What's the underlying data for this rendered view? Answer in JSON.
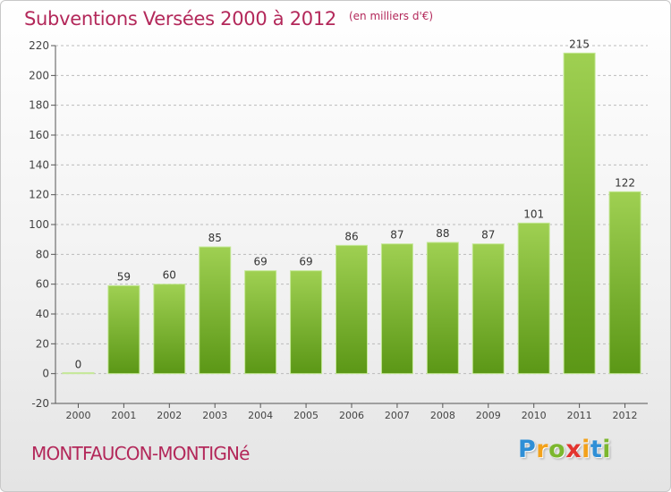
{
  "header": {
    "title": "Subventions Versées 2000 à 2012",
    "unit": "(en milliers d'€)"
  },
  "footer": {
    "place": "MONTFAUCON-MONTIGNé",
    "logo_text": "Proxiti"
  },
  "colors": {
    "bar_top": "#9fd052",
    "bar_bottom": "#5b9716",
    "accent": "#b3285a",
    "grid": "#bbbbbb"
  },
  "chart_data": {
    "type": "bar",
    "title": "Subventions Versées 2000 à 2012",
    "categories": [
      "2000",
      "2001",
      "2002",
      "2003",
      "2004",
      "2005",
      "2006",
      "2007",
      "2008",
      "2009",
      "2010",
      "2011",
      "2012"
    ],
    "values": [
      0,
      59,
      60,
      85,
      69,
      69,
      86,
      87,
      88,
      87,
      101,
      215,
      122
    ],
    "ylim": [
      -20,
      220
    ],
    "yticks": [
      -20,
      0,
      20,
      40,
      60,
      80,
      100,
      120,
      140,
      160,
      180,
      200,
      220
    ],
    "grid": "horizontal dashed",
    "legend": "none"
  }
}
